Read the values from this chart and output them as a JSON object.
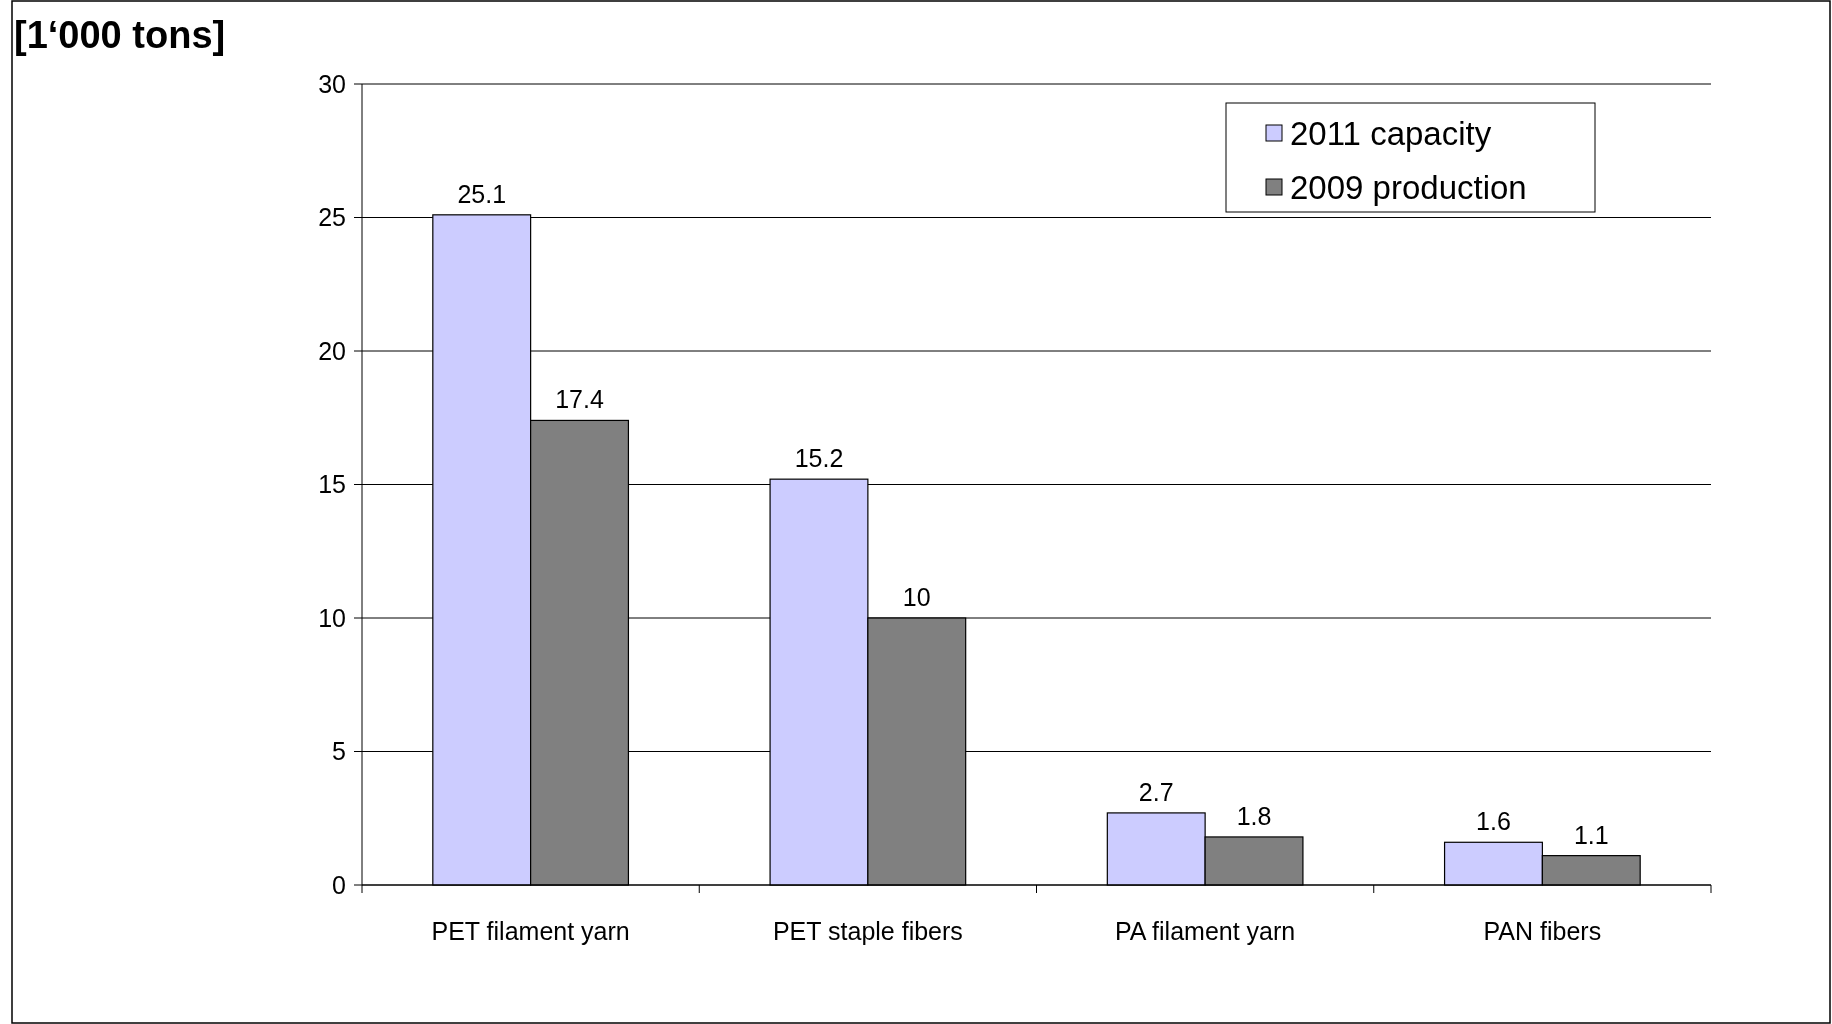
{
  "chart_data": {
    "type": "bar",
    "ylabel": "[1‘000 tons]",
    "categories": [
      "PET filament yarn",
      "PET staple fibers",
      "PA filament yarn",
      "PAN fibers"
    ],
    "series": [
      {
        "name": "2011 capacity",
        "color": "#ccccff",
        "values": [
          25.1,
          15.2,
          2.7,
          1.6
        ]
      },
      {
        "name": "2009 production",
        "color": "#808080",
        "values": [
          17.4,
          10,
          1.8,
          1.1
        ]
      }
    ],
    "ylim": [
      0,
      30
    ],
    "yticks": [
      0,
      5,
      10,
      15,
      20,
      25,
      30
    ],
    "grid": "y",
    "legend": "top right",
    "data_labels": true
  }
}
